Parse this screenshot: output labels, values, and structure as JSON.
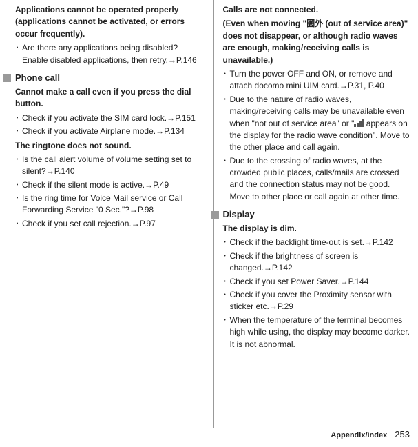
{
  "left": {
    "apps_heading": "Applications cannot be operated properly (applications cannot be activated, or errors occur frequently).",
    "apps_b1": "Are there any applications being disabled? Enable disabled applications, then retry.→P.146",
    "phone_section": "Phone call",
    "phone_h1": "Cannot make a call even if you press the dial button.",
    "phone_b1": "Check if you activate the SIM card lock.→P.151",
    "phone_b2": "Check if you activate Airplane mode.→P.134",
    "phone_h2": "The ringtone does not sound.",
    "phone_b3": "Is the call alert volume of volume setting set to silent?→P.140",
    "phone_b4": "Check if the silent mode is active.→P.49",
    "phone_b5": "Is the ring time for Voice Mail service or Call Forwarding Service \"0 Sec.\"?→P.98",
    "phone_b6": "Check if you set call rejection.→P.97"
  },
  "right": {
    "calls_h1": "Calls are not connected.",
    "calls_h2a": "(Even when moving \"圏外 (out of service area)\" does not disappear, or although radio waves are enough, making/receiving calls is unavailable.)",
    "calls_b1": "Turn the power OFF and ON, or remove and attach docomo mini UIM card.→P.31, P.40",
    "calls_b2a": "Due to the nature of radio waves, making/receiving calls may be unavailable even when \"not out of service area\" or \"",
    "calls_b2b": " appears on the display for the radio wave condition\". Move to the other place and call again.",
    "calls_b3": "Due to the crossing of radio waves, at the crowded public places, calls/mails are crossed and the connection status may not be good. Move to other place or call again at other time.",
    "display_section": "Display",
    "display_h1": "The display is dim.",
    "display_b1": "Check if the backlight time-out is set.→P.142",
    "display_b2": "Check if the brightness of screen is changed.→P.142",
    "display_b3": "Check if you set Power Saver.→P.144",
    "display_b4": "Check if you cover the Proximity sensor with sticker etc.→P.29",
    "display_b5": "When the temperature of the terminal becomes high while using, the display may become darker. It is not abnormal."
  },
  "footer": {
    "label": "Appendix/Index",
    "page": "253"
  }
}
